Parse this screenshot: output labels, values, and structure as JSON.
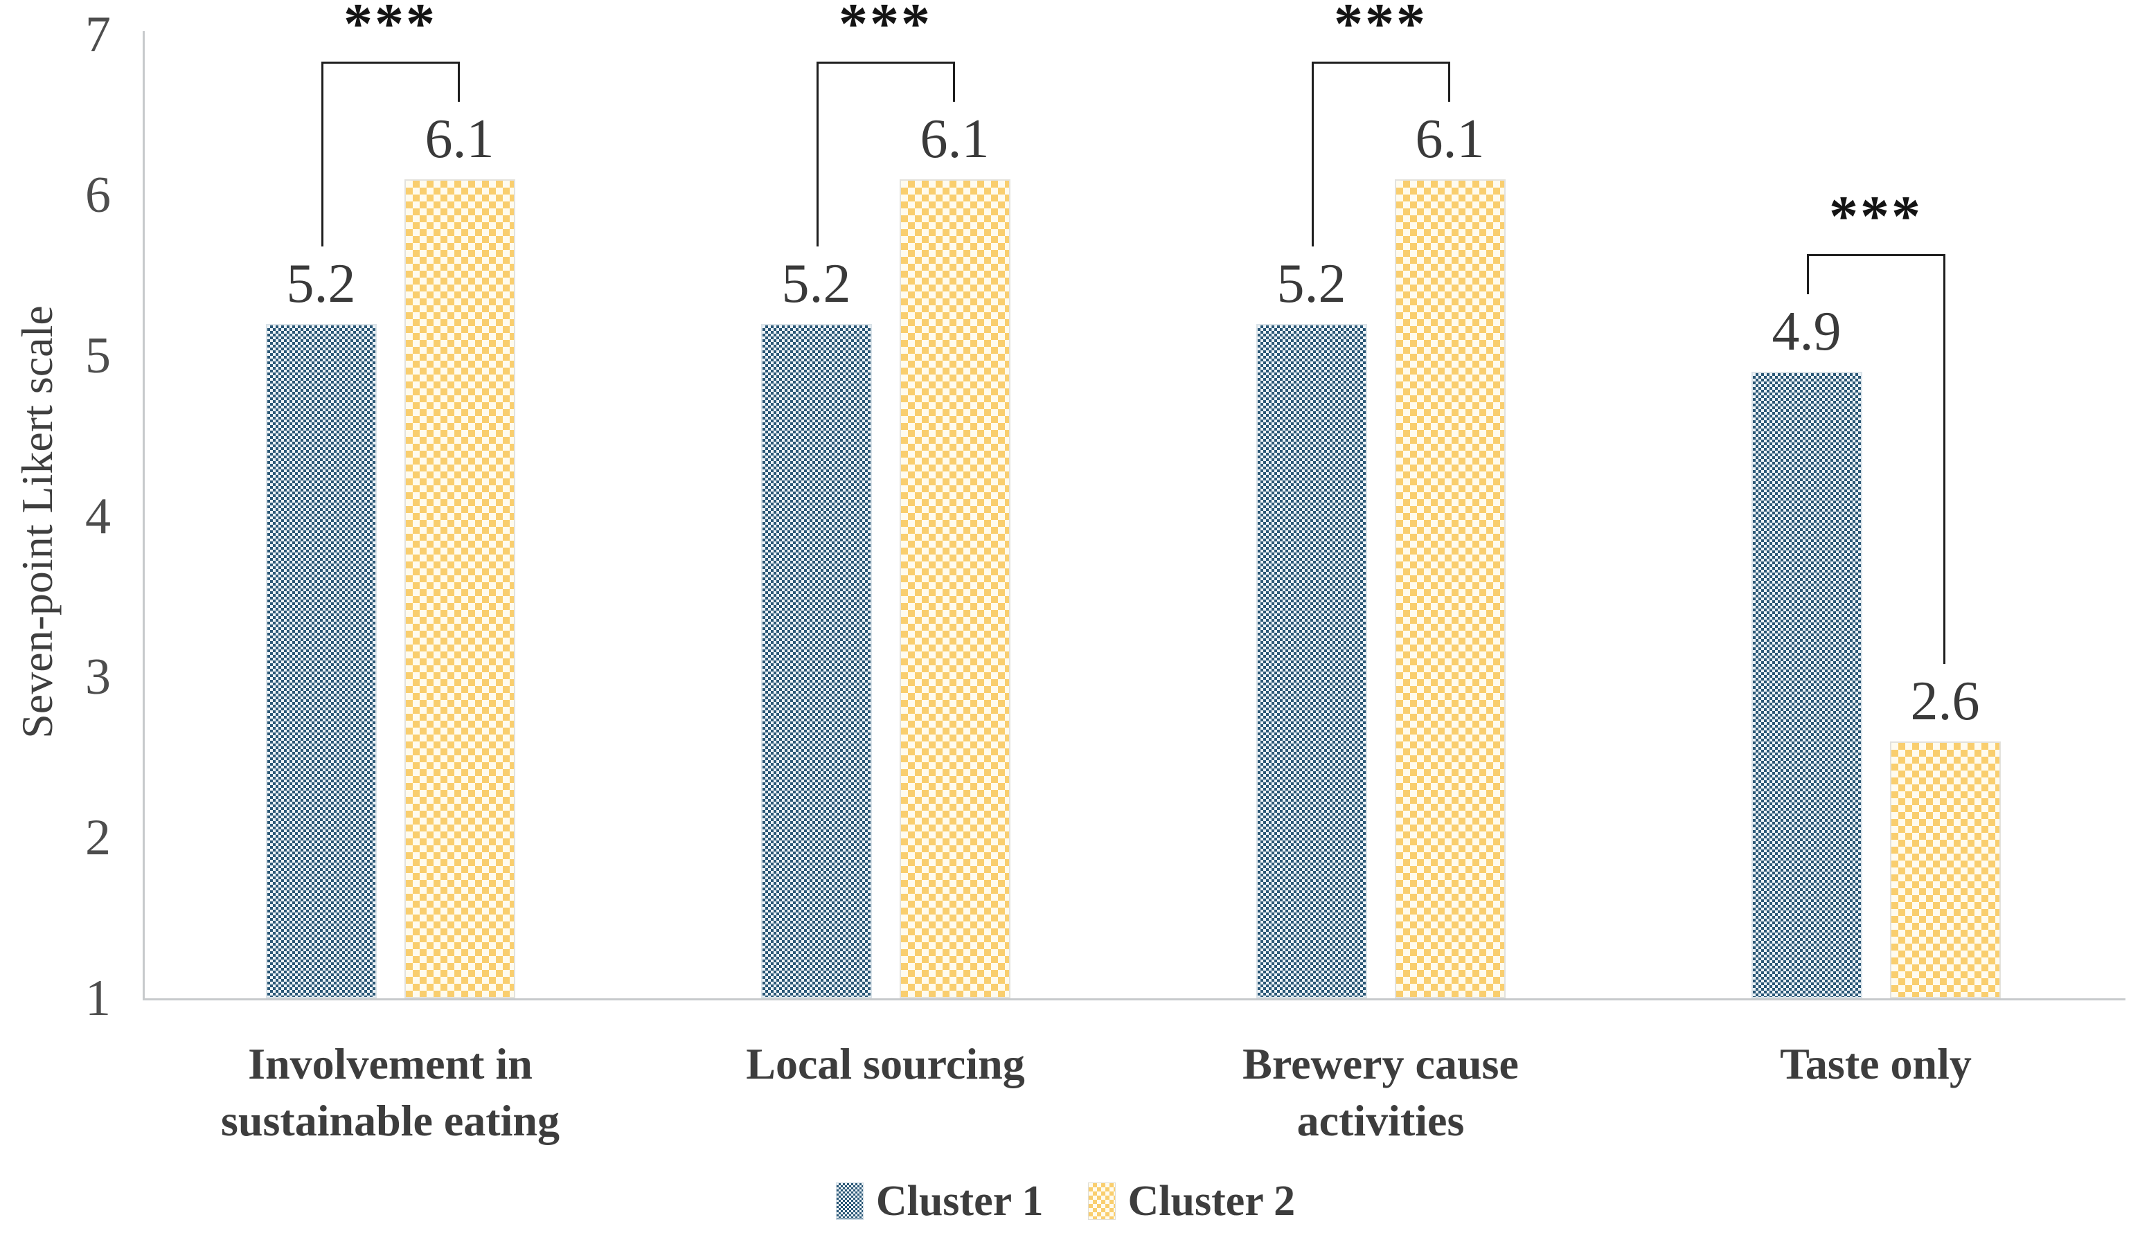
{
  "figure": {
    "background_color": "#ffffff",
    "axis_line_color": "#c7cacc",
    "bracket_color": "#1f1f1f",
    "text_color": "#3d3d3d"
  },
  "y_axis": {
    "label": "Seven-point Likert scale",
    "ticks": [
      "7",
      "6",
      "5",
      "4",
      "3",
      "2",
      "1"
    ],
    "min": 1,
    "max": 7
  },
  "legend": {
    "items": [
      {
        "label": "Cluster 1",
        "swatch": "blue-checker-swatch"
      },
      {
        "label": "Cluster 2",
        "swatch": "yellow-checker-swatch"
      }
    ]
  },
  "chart_data": {
    "type": "bar",
    "title": "",
    "xlabel": "",
    "ylabel": "Seven-point Likert scale",
    "ylim": [
      1,
      7
    ],
    "yticks": [
      1,
      2,
      3,
      4,
      5,
      6,
      7
    ],
    "grid": false,
    "legend_position": "bottom-center",
    "categories": [
      "Involvement in sustainable eating",
      "Local sourcing",
      "Brewery cause activities",
      "Taste only"
    ],
    "category_label_lines": [
      [
        "Involvement in",
        "sustainable eating"
      ],
      [
        "Local sourcing"
      ],
      [
        "Brewery cause",
        "activities"
      ],
      [
        "Taste only"
      ]
    ],
    "series": [
      {
        "name": "Cluster 1",
        "values": [
          5.2,
          5.2,
          5.2,
          4.9
        ],
        "pattern": "small-checker",
        "color": "#2b5877"
      },
      {
        "name": "Cluster 2",
        "values": [
          6.1,
          6.1,
          6.1,
          2.6
        ],
        "pattern": "large-checker",
        "color": "#f9ce6e"
      }
    ],
    "value_labels": [
      [
        "5.2",
        "6.1"
      ],
      [
        "5.2",
        "6.1"
      ],
      [
        "5.2",
        "6.1"
      ],
      [
        "4.9",
        "2.6"
      ]
    ],
    "significance_markers": [
      "***",
      "***",
      "***",
      "***"
    ]
  }
}
